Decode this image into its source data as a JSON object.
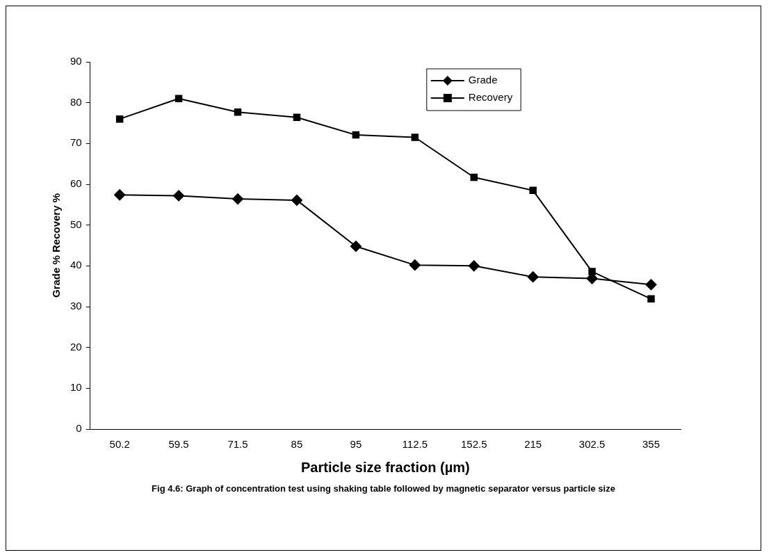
{
  "chart_data": {
    "type": "line",
    "xlabel": "Particle size fraction (µm)",
    "ylabel": "Grade % Recovery %",
    "annotations": [
      "Fig 4.6: Graph of concentration test using shaking table followed by magnetic separator versus particle size"
    ],
    "categories": [
      "50.2",
      "59.5",
      "71.5",
      "85",
      "95",
      "112.5",
      "152.5",
      "215",
      "302.5",
      "355"
    ],
    "series": [
      {
        "name": "Grade",
        "color": "#000000",
        "marker": "diamond",
        "values": [
          57.4,
          57.2,
          56.4,
          56.1,
          44.8,
          40.2,
          40.0,
          37.3,
          36.9,
          35.4
        ]
      },
      {
        "name": "Recovery",
        "color": "#000000",
        "marker": "square",
        "values": [
          76.0,
          81.0,
          77.7,
          76.4,
          72.1,
          71.5,
          61.7,
          58.5,
          38.6,
          31.9
        ]
      }
    ],
    "ylim": [
      0,
      90
    ],
    "yticks": [
      0,
      10,
      20,
      30,
      40,
      50,
      60,
      70,
      80,
      90
    ],
    "grid": false,
    "legend": "top",
    "line_style": "solid"
  }
}
